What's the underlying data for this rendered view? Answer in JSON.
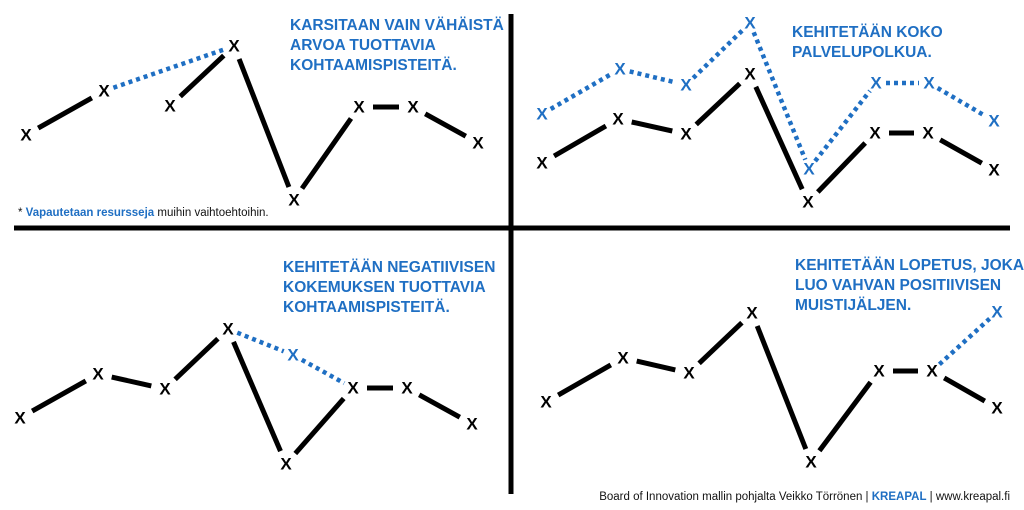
{
  "mark_symbol": "X",
  "colors": {
    "line": "#000000",
    "accent": "#1f6fc3"
  },
  "quadrants": [
    {
      "title_lines": [
        "KARSITAAN VAIN VÄHÄISTÄ",
        "ARVOA TUOTTAVIA",
        "KOHTAAMISPISTEITÄ."
      ],
      "note": {
        "prefix": "* ",
        "highlight": "Vapautetaan resursseja",
        "rest": " muihin vaihtoehtoihin."
      }
    },
    {
      "title_lines": [
        "KEHITETÄÄN KOKO",
        "PALVELUPOLKUA."
      ]
    },
    {
      "title_lines": [
        "KEHITETÄÄN NEGATIIVISEN",
        "KOKEMUKSEN TUOTTAVIA",
        "KOHTAAMISPISTEITÄ."
      ]
    },
    {
      "title_lines": [
        "KEHITETÄÄN LOPETUS, JOKA",
        "LUO VAHVAN  POSITIIVISEN",
        "MUISTIJÄLJEN."
      ]
    }
  ],
  "credit": {
    "text": "Board of Innovation mallin pohjalta Veikko Törrönen | ",
    "brand": "KREAPAL",
    "tail": " | www.kreapal.fi"
  }
}
